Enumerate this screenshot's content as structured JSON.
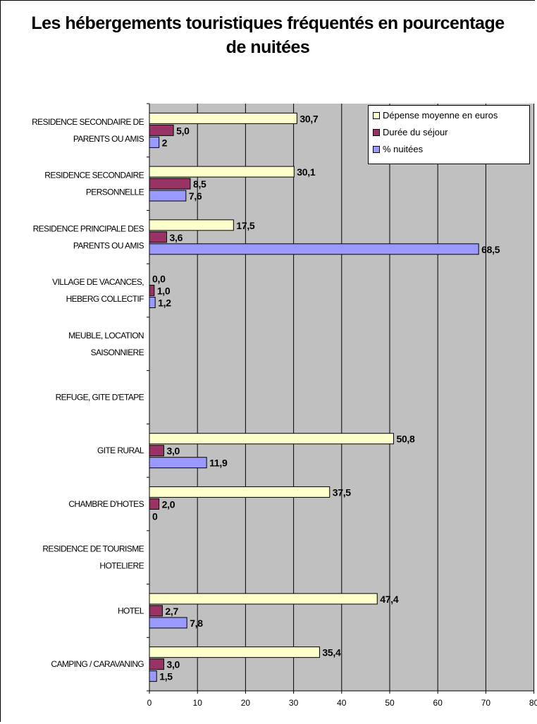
{
  "chart_data": {
    "type": "bar",
    "orientation": "horizontal",
    "title": "Les hébergements touristiques fréquentés en pourcentage de nuitées",
    "xlim": [
      0,
      80
    ],
    "x_ticks": [
      "0",
      "10",
      "20",
      "30",
      "40",
      "50",
      "60",
      "70",
      "80"
    ],
    "grid": "vertical",
    "legend_position": "top-right",
    "categories": [
      [
        "RESIDENCE SECONDAIRE DE",
        "PARENTS OU AMIS"
      ],
      [
        "RESIDENCE SECONDAIRE",
        "PERSONNELLE"
      ],
      [
        "RESIDENCE PRINCIPALE DES",
        "PARENTS OU AMIS"
      ],
      [
        "VILLAGE DE VACANCES,",
        "HEBERG COLLECTIF"
      ],
      [
        "MEUBLE, LOCATION",
        "SAISONNIERE"
      ],
      [
        "REFUGE, GITE D'ETAPE"
      ],
      [
        "GITE RURAL"
      ],
      [
        "CHAMBRE D'HOTES"
      ],
      [
        "RESIDENCE DE TOURISME",
        "HOTELIERE"
      ],
      [
        "HOTEL"
      ],
      [
        "CAMPING / CARAVANING"
      ]
    ],
    "series": [
      {
        "name": "Dépense moyenne en euros",
        "color": "#ffffcc",
        "values": [
          30.7,
          30.1,
          17.5,
          0.0,
          null,
          null,
          50.8,
          37.5,
          null,
          47.4,
          35.4
        ],
        "labels": [
          "30,7",
          "30,1",
          "17,5",
          "0,0",
          "",
          "",
          "50,8",
          "37,5",
          "",
          "47,4",
          "35,4"
        ]
      },
      {
        "name": "Durée du séjour",
        "color": "#993366",
        "values": [
          5.0,
          8.5,
          3.6,
          1.0,
          null,
          null,
          3.0,
          2.0,
          null,
          2.7,
          3.0
        ],
        "labels": [
          "5,0",
          "8,5",
          "3,6",
          "1,0",
          "",
          "",
          "3,0",
          "2,0",
          "",
          "2,7",
          "3,0"
        ]
      },
      {
        "name": "% nuitées",
        "color": "#9999ff",
        "values": [
          2,
          7.6,
          68.5,
          1.2,
          null,
          null,
          11.9,
          0,
          null,
          7.8,
          1.5
        ],
        "labels": [
          "2",
          "7,6",
          "68,5",
          "1,2",
          "",
          "",
          "11,9",
          "0",
          "",
          "7,8",
          "1,5"
        ]
      }
    ]
  }
}
